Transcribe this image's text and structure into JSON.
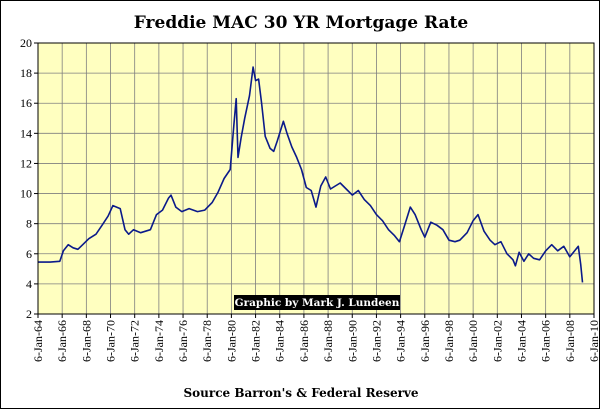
{
  "chart_data": {
    "type": "line",
    "title": "Freddie MAC 30 YR Mortgage Rate",
    "xlabel": "Source Barron's & Federal Reserve",
    "ylabel": "",
    "credit": "Graphic by Mark J. Lundeen",
    "ylim": [
      2,
      20
    ],
    "yticks": [
      2,
      4,
      6,
      8,
      10,
      12,
      14,
      16,
      18,
      20
    ],
    "xlim": [
      1964,
      2010
    ],
    "xtick_labels": [
      "6-Jan-64",
      "6-Jan-66",
      "6-Jan-68",
      "6-Jan-70",
      "6-Jan-72",
      "6-Jan-74",
      "6-Jan-76",
      "6-Jan-78",
      "6-Jan-80",
      "6-Jan-82",
      "6-Jan-84",
      "6-Jan-86",
      "6-Jan-88",
      "6-Jan-90",
      "6-Jan-92",
      "6-Jan-94",
      "6-Jan-96",
      "6-Jan-98",
      "6-Jan-00",
      "6-Jan-02",
      "6-Jan-04",
      "6-Jan-06",
      "6-Jan-08",
      "6-Jan-10"
    ],
    "grid": true,
    "colors": {
      "plot_bg": "#FFFFC0",
      "line": "#0B1A8A",
      "grid": "#7F7F7F",
      "credit_bg": "#000000",
      "credit_text": "#FFFFFF"
    },
    "series": [
      {
        "name": "Freddie MAC 30 YR Mortgage Rate",
        "points": [
          [
            1964.0,
            5.45
          ],
          [
            1965.0,
            5.45
          ],
          [
            1965.8,
            5.5
          ],
          [
            1966.1,
            6.2
          ],
          [
            1966.5,
            6.6
          ],
          [
            1966.9,
            6.4
          ],
          [
            1967.3,
            6.3
          ],
          [
            1967.7,
            6.6
          ],
          [
            1968.2,
            7.0
          ],
          [
            1968.8,
            7.3
          ],
          [
            1969.3,
            7.9
          ],
          [
            1969.8,
            8.5
          ],
          [
            1970.2,
            9.2
          ],
          [
            1970.8,
            9.0
          ],
          [
            1971.2,
            7.6
          ],
          [
            1971.5,
            7.3
          ],
          [
            1971.9,
            7.6
          ],
          [
            1972.5,
            7.4
          ],
          [
            1973.3,
            7.6
          ],
          [
            1973.8,
            8.6
          ],
          [
            1974.3,
            8.9
          ],
          [
            1974.8,
            9.7
          ],
          [
            1975.0,
            9.9
          ],
          [
            1975.4,
            9.1
          ],
          [
            1975.9,
            8.8
          ],
          [
            1976.5,
            9.0
          ],
          [
            1977.2,
            8.8
          ],
          [
            1977.8,
            8.9
          ],
          [
            1978.4,
            9.4
          ],
          [
            1978.9,
            10.1
          ],
          [
            1979.4,
            11.0
          ],
          [
            1979.9,
            11.6
          ],
          [
            1980.2,
            14.5
          ],
          [
            1980.4,
            16.3
          ],
          [
            1980.55,
            12.4
          ],
          [
            1980.8,
            13.7
          ],
          [
            1981.1,
            15.0
          ],
          [
            1981.5,
            16.5
          ],
          [
            1981.8,
            18.4
          ],
          [
            1982.0,
            17.5
          ],
          [
            1982.25,
            17.6
          ],
          [
            1982.5,
            16.0
          ],
          [
            1982.8,
            13.8
          ],
          [
            1983.2,
            13.0
          ],
          [
            1983.5,
            12.8
          ],
          [
            1983.8,
            13.5
          ],
          [
            1984.3,
            14.8
          ],
          [
            1984.6,
            14.0
          ],
          [
            1985.0,
            13.1
          ],
          [
            1985.4,
            12.4
          ],
          [
            1985.8,
            11.6
          ],
          [
            1986.2,
            10.4
          ],
          [
            1986.6,
            10.2
          ],
          [
            1987.0,
            9.1
          ],
          [
            1987.4,
            10.5
          ],
          [
            1987.8,
            11.1
          ],
          [
            1988.2,
            10.3
          ],
          [
            1988.6,
            10.5
          ],
          [
            1989.0,
            10.7
          ],
          [
            1989.5,
            10.3
          ],
          [
            1990.0,
            9.9
          ],
          [
            1990.5,
            10.2
          ],
          [
            1991.0,
            9.6
          ],
          [
            1991.5,
            9.2
          ],
          [
            1992.0,
            8.6
          ],
          [
            1992.5,
            8.2
          ],
          [
            1993.0,
            7.6
          ],
          [
            1993.5,
            7.2
          ],
          [
            1993.9,
            6.8
          ],
          [
            1994.3,
            7.8
          ],
          [
            1994.8,
            9.1
          ],
          [
            1995.2,
            8.6
          ],
          [
            1995.7,
            7.6
          ],
          [
            1996.0,
            7.1
          ],
          [
            1996.5,
            8.1
          ],
          [
            1997.0,
            7.9
          ],
          [
            1997.5,
            7.6
          ],
          [
            1998.0,
            6.9
          ],
          [
            1998.5,
            6.8
          ],
          [
            1998.9,
            6.9
          ],
          [
            1999.5,
            7.4
          ],
          [
            2000.0,
            8.2
          ],
          [
            2000.4,
            8.6
          ],
          [
            2000.9,
            7.5
          ],
          [
            2001.4,
            6.9
          ],
          [
            2001.8,
            6.6
          ],
          [
            2002.3,
            6.8
          ],
          [
            2002.8,
            6.0
          ],
          [
            2003.3,
            5.6
          ],
          [
            2003.5,
            5.2
          ],
          [
            2003.8,
            6.1
          ],
          [
            2004.2,
            5.5
          ],
          [
            2004.6,
            6.0
          ],
          [
            2005.0,
            5.7
          ],
          [
            2005.5,
            5.6
          ],
          [
            2006.0,
            6.2
          ],
          [
            2006.5,
            6.6
          ],
          [
            2007.0,
            6.2
          ],
          [
            2007.5,
            6.5
          ],
          [
            2008.0,
            5.8
          ],
          [
            2008.5,
            6.3
          ],
          [
            2008.7,
            6.5
          ],
          [
            2008.9,
            5.3
          ],
          [
            2009.05,
            4.1
          ]
        ]
      }
    ]
  }
}
